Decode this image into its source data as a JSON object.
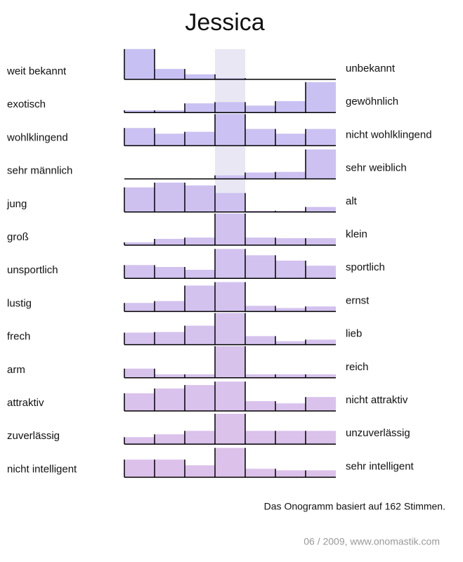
{
  "chart_data": {
    "type": "onogram",
    "title": "Jessica",
    "ylim": [
      0,
      100
    ],
    "color_top": "#c7c1f3",
    "color_bottom": "#dcc2ea",
    "rows": [
      {
        "left": "weit bekannt",
        "right": "unbekannt",
        "values": [
          96,
          33,
          16,
          4,
          0,
          0,
          0
        ]
      },
      {
        "left": "exotisch",
        "right": "gewöhnlich",
        "values": [
          7,
          7,
          29,
          33,
          22,
          36,
          96
        ]
      },
      {
        "left": "wohlklingend",
        "right": "nicht wohlklingend",
        "values": [
          56,
          38,
          44,
          100,
          53,
          38,
          53
        ]
      },
      {
        "left": "sehr männlich",
        "right": "sehr weiblich",
        "values": [
          0,
          0,
          0,
          11,
          20,
          22,
          93
        ]
      },
      {
        "left": "jung",
        "right": "alt",
        "values": [
          78,
          93,
          84,
          60,
          4,
          4,
          16
        ]
      },
      {
        "left": "groß",
        "right": "klein",
        "values": [
          9,
          20,
          24,
          100,
          24,
          22,
          22
        ]
      },
      {
        "left": "unsportlich",
        "right": "sportlich",
        "values": [
          42,
          36,
          27,
          93,
          73,
          56,
          40
        ]
      },
      {
        "left": "lustig",
        "right": "ernst",
        "values": [
          27,
          33,
          82,
          93,
          18,
          11,
          16
        ]
      },
      {
        "left": "frech",
        "right": "lieb",
        "values": [
          38,
          40,
          60,
          100,
          27,
          11,
          16
        ]
      },
      {
        "left": "arm",
        "right": "reich",
        "values": [
          29,
          11,
          11,
          100,
          11,
          11,
          11
        ]
      },
      {
        "left": "attraktiv",
        "right": "nicht attraktiv",
        "values": [
          56,
          71,
          82,
          93,
          31,
          24,
          44
        ]
      },
      {
        "left": "zuverlässig",
        "right": "unzuverlässig",
        "values": [
          22,
          31,
          42,
          96,
          42,
          42,
          42
        ]
      },
      {
        "left": "nicht intelligent",
        "right": "sehr intelligent",
        "values": [
          56,
          56,
          38,
          93,
          27,
          22,
          22
        ]
      }
    ],
    "note": "Das Onogramm basiert auf 162 Stimmen.",
    "credit": "06 / 2009,  www.onomastik.com"
  }
}
